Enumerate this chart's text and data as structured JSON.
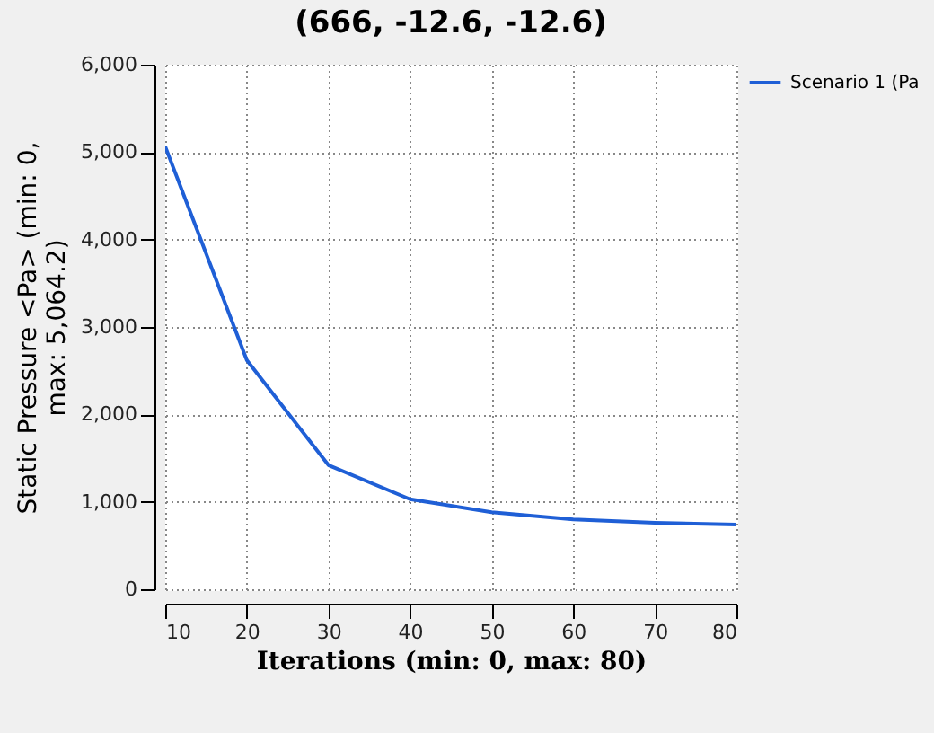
{
  "chart_data": {
    "type": "line",
    "title": "(666, -12.6, -12.6)",
    "xlabel": "Iterations (min: 0, max: 80)",
    "ylabel": "Static Pressure <Pa> (min: 0,\nmax: 5,064.2)",
    "x": [
      10,
      20,
      30,
      40,
      50,
      60,
      70,
      80
    ],
    "series": [
      {
        "name": "Scenario 1 (Pa",
        "color": "#1f5fd6",
        "values": [
          5064,
          2620,
          1420,
          1030,
          880,
          800,
          760,
          740
        ]
      }
    ],
    "xlim": [
      10,
      80
    ],
    "xticks": [
      10,
      20,
      30,
      40,
      50,
      60,
      70,
      80
    ],
    "ylim": [
      0,
      6000
    ],
    "yticks": [
      {
        "value": 0,
        "label": "0"
      },
      {
        "value": 1000,
        "label": "1,000"
      },
      {
        "value": 2000,
        "label": "2,000"
      },
      {
        "value": 3000,
        "label": "3,000"
      },
      {
        "value": 4000,
        "label": "4,000"
      },
      {
        "value": 5000,
        "label": "5,000"
      },
      {
        "value": 6000,
        "label": "6,000"
      }
    ],
    "grid": true,
    "legend": "top right",
    "marker": "none",
    "line_style": "solid"
  }
}
